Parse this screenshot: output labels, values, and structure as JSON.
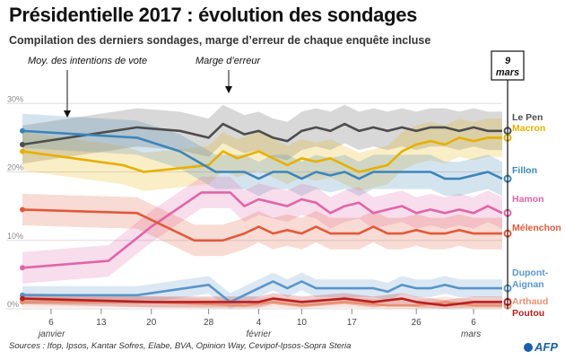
{
  "title": "Présidentielle 2017 : évolution des sondages",
  "subtitle": "Compilation des derniers sondages, marge d’erreur de chaque enquête incluse",
  "footer": "Sources : Ifop, Ipsos, Kantar Sofres, Elabe, BVA, Opinion Way, Cevipof-Ipsos-Sopra Steria",
  "logo": "AFP",
  "current_marker": {
    "day": "9",
    "month": "mars"
  },
  "annotations": {
    "mean": "Moy. des intentions de vote",
    "margin": "Marge d’erreur"
  },
  "colors": {
    "Le Pen": "#4d4d4d",
    "Macron": "#e6b000",
    "Fillon": "#3d85b8",
    "Hamon": "#e065a8",
    "Mélenchon": "#e05a3a",
    "Dupont-Aignan": "#5a95c8",
    "Arthaud": "#e89070",
    "Poutou": "#b82020"
  },
  "chart_data": {
    "type": "line",
    "title": "Présidentielle 2017 : évolution des sondages",
    "xlabel": "",
    "ylabel": "",
    "ylim": [
      0,
      32
    ],
    "x_range": [
      "2017-01-02",
      "2017-03-10"
    ],
    "y_ticks": [
      "0%",
      "10%",
      "20%",
      "30%"
    ],
    "y_tick_values": [
      0,
      10,
      20,
      30
    ],
    "x_ticks": [
      {
        "date": "2017-01-06",
        "label": "6",
        "month": "janvier"
      },
      {
        "date": "2017-01-13",
        "label": "13",
        "month": ""
      },
      {
        "date": "2017-01-20",
        "label": "20",
        "month": ""
      },
      {
        "date": "2017-01-28",
        "label": "28",
        "month": ""
      },
      {
        "date": "2017-02-04",
        "label": "4",
        "month": "février"
      },
      {
        "date": "2017-02-10",
        "label": "10",
        "month": ""
      },
      {
        "date": "2017-02-17",
        "label": "17",
        "month": ""
      },
      {
        "date": "2017-02-26",
        "label": "26",
        "month": ""
      },
      {
        "date": "2017-03-06",
        "label": "6",
        "month": "mars"
      }
    ],
    "grid": true,
    "legend": "right",
    "series": [
      {
        "name": "Le Pen",
        "margin": 2.8,
        "x": [
          "2017-01-02",
          "2017-01-18",
          "2017-01-24",
          "2017-01-28",
          "2017-01-30",
          "2017-02-02",
          "2017-02-04",
          "2017-02-06",
          "2017-02-08",
          "2017-02-10",
          "2017-02-12",
          "2017-02-14",
          "2017-02-16",
          "2017-02-18",
          "2017-02-20",
          "2017-02-22",
          "2017-02-24",
          "2017-02-26",
          "2017-02-28",
          "2017-03-02",
          "2017-03-04",
          "2017-03-06",
          "2017-03-08",
          "2017-03-10"
        ],
        "y": [
          24,
          26.5,
          26,
          25,
          27,
          25.5,
          26,
          25,
          24.5,
          26,
          26.5,
          26,
          27,
          26,
          26.5,
          26,
          26.5,
          26,
          26.5,
          26.5,
          26,
          26.5,
          26,
          26
        ]
      },
      {
        "name": "Macron",
        "margin": 2.8,
        "x": [
          "2017-01-02",
          "2017-01-16",
          "2017-01-19",
          "2017-01-28",
          "2017-01-30",
          "2017-02-01",
          "2017-02-04",
          "2017-02-06",
          "2017-02-08",
          "2017-02-10",
          "2017-02-12",
          "2017-02-14",
          "2017-02-16",
          "2017-02-18",
          "2017-02-20",
          "2017-02-22",
          "2017-02-24",
          "2017-02-26",
          "2017-02-28",
          "2017-03-02",
          "2017-03-04",
          "2017-03-06",
          "2017-03-08",
          "2017-03-10"
        ],
        "y": [
          23,
          21,
          20,
          21,
          23,
          22,
          23,
          22,
          21,
          22,
          21.5,
          22,
          21,
          20,
          20.5,
          21,
          23,
          24,
          24.5,
          24,
          25,
          24.5,
          25,
          25
        ]
      },
      {
        "name": "Fillon",
        "margin": 2.5,
        "x": [
          "2017-01-02",
          "2017-01-18",
          "2017-01-24",
          "2017-01-29",
          "2017-02-02",
          "2017-02-04",
          "2017-02-06",
          "2017-02-08",
          "2017-02-10",
          "2017-02-12",
          "2017-02-14",
          "2017-02-16",
          "2017-02-18",
          "2017-02-20",
          "2017-02-22",
          "2017-02-24",
          "2017-02-26",
          "2017-02-28",
          "2017-03-02",
          "2017-03-04",
          "2017-03-06",
          "2017-03-08",
          "2017-03-10"
        ],
        "y": [
          26,
          25,
          23,
          20,
          20,
          19,
          20,
          20,
          19,
          20,
          19.5,
          20,
          19,
          20,
          20,
          20,
          20,
          20,
          19,
          19,
          19.5,
          20,
          19
        ]
      },
      {
        "name": "Hamon",
        "margin": 2.3,
        "x": [
          "2017-01-02",
          "2017-01-14",
          "2017-01-20",
          "2017-01-27",
          "2017-01-31",
          "2017-02-02",
          "2017-02-04",
          "2017-02-06",
          "2017-02-08",
          "2017-02-10",
          "2017-02-12",
          "2017-02-14",
          "2017-02-16",
          "2017-02-18",
          "2017-02-20",
          "2017-02-22",
          "2017-02-24",
          "2017-02-26",
          "2017-02-28",
          "2017-03-02",
          "2017-03-04",
          "2017-03-06",
          "2017-03-08",
          "2017-03-10"
        ],
        "y": [
          6,
          7,
          12,
          17,
          17,
          15,
          16,
          15.5,
          15,
          16,
          15.5,
          14,
          15,
          15.5,
          14,
          14.5,
          15,
          14,
          14.5,
          14,
          14.5,
          14,
          15,
          14
        ]
      },
      {
        "name": "Mélenchon",
        "margin": 2.3,
        "x": [
          "2017-01-02",
          "2017-01-18",
          "2017-01-26",
          "2017-01-30",
          "2017-02-02",
          "2017-02-04",
          "2017-02-06",
          "2017-02-08",
          "2017-02-10",
          "2017-02-12",
          "2017-02-14",
          "2017-02-16",
          "2017-02-18",
          "2017-02-20",
          "2017-02-22",
          "2017-02-24",
          "2017-02-26",
          "2017-02-28",
          "2017-03-02",
          "2017-03-04",
          "2017-03-06",
          "2017-03-08",
          "2017-03-10"
        ],
        "y": [
          14.5,
          14,
          10,
          10,
          11,
          12,
          11,
          11.5,
          11,
          12,
          11,
          11,
          11,
          12,
          11,
          11,
          11.5,
          11,
          11,
          11.5,
          11,
          11,
          11
        ]
      },
      {
        "name": "Dupont-Aignan",
        "margin": 1.3,
        "x": [
          "2017-01-02",
          "2017-01-18",
          "2017-01-28",
          "2017-01-31",
          "2017-02-04",
          "2017-02-06",
          "2017-02-08",
          "2017-02-10",
          "2017-02-12",
          "2017-02-14",
          "2017-02-16",
          "2017-02-18",
          "2017-02-20",
          "2017-02-22",
          "2017-02-24",
          "2017-02-26",
          "2017-02-28",
          "2017-03-02",
          "2017-03-04",
          "2017-03-06",
          "2017-03-08",
          "2017-03-10"
        ],
        "y": [
          2,
          2,
          3.5,
          1,
          3,
          4,
          3,
          4,
          3,
          3,
          3,
          3,
          3,
          2.5,
          3.5,
          3,
          3,
          3.5,
          3,
          3,
          3,
          3
        ]
      },
      {
        "name": "Arthaud",
        "margin": 0.8,
        "x": [
          "2017-01-02",
          "2017-01-20",
          "2017-02-02",
          "2017-02-06",
          "2017-02-10",
          "2017-02-16",
          "2017-02-22",
          "2017-02-26",
          "2017-03-02",
          "2017-03-06",
          "2017-03-10"
        ],
        "y": [
          1,
          1,
          0.5,
          1,
          0.5,
          1,
          0.5,
          0.5,
          1,
          0.5,
          0.5
        ]
      },
      {
        "name": "Poutou",
        "margin": 0.8,
        "x": [
          "2017-01-02",
          "2017-01-20",
          "2017-02-02",
          "2017-02-04",
          "2017-02-06",
          "2017-02-10",
          "2017-02-16",
          "2017-02-20",
          "2017-02-24",
          "2017-02-26",
          "2017-03-02",
          "2017-03-06",
          "2017-03-10"
        ],
        "y": [
          1.5,
          1,
          1,
          1,
          1.5,
          1,
          1.5,
          1,
          1.5,
          1,
          0.5,
          1,
          1
        ]
      }
    ]
  }
}
